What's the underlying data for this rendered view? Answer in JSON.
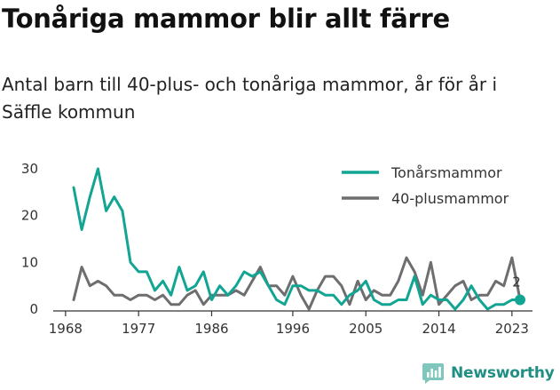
{
  "title": "Tonåriga mammor blir allt färre",
  "subtitle": "Antal barn till 40-plus- och tonåriga mammor, år för år i Säffle kommun",
  "brand": {
    "name": "Newsworthy",
    "icon": "newsworthy-logo-icon"
  },
  "colors": {
    "teen": "#12a593",
    "plus40": "#6e6e70",
    "axis": "#333333",
    "grid": "#d9d9d9"
  },
  "chart_data": {
    "type": "line",
    "xlabel": "",
    "ylabel": "",
    "xlim": [
      1968,
      2024
    ],
    "ylim": [
      0,
      30
    ],
    "x_ticks": [
      "1968",
      "1977",
      "1986",
      "1996",
      "2005",
      "2014",
      "2023"
    ],
    "y_ticks": [
      "0",
      "10",
      "20",
      "30"
    ],
    "grid": false,
    "legend_position": "top-right",
    "x": [
      1969,
      1970,
      1971,
      1972,
      1973,
      1974,
      1975,
      1976,
      1977,
      1978,
      1979,
      1980,
      1981,
      1982,
      1983,
      1984,
      1985,
      1986,
      1987,
      1988,
      1989,
      1990,
      1991,
      1992,
      1993,
      1994,
      1995,
      1996,
      1997,
      1998,
      1999,
      2000,
      2001,
      2002,
      2003,
      2004,
      2005,
      2006,
      2007,
      2008,
      2009,
      2010,
      2011,
      2012,
      2013,
      2014,
      2015,
      2016,
      2017,
      2018,
      2019,
      2020,
      2021,
      2022,
      2023,
      2024
    ],
    "series": [
      {
        "name": "Tonårsmammor",
        "color": "#12a593",
        "values": [
          26,
          17,
          24,
          30,
          21,
          24,
          21,
          10,
          8,
          8,
          4,
          6,
          3,
          9,
          4,
          5,
          8,
          2,
          5,
          3,
          5,
          8,
          7,
          8,
          5,
          2,
          1,
          5,
          5,
          4,
          4,
          3,
          3,
          1,
          3,
          4,
          6,
          2,
          1,
          1,
          2,
          2,
          7,
          1,
          3,
          2,
          2,
          0,
          2,
          5,
          2,
          0,
          1,
          1,
          2,
          2
        ]
      },
      {
        "name": "40-plusmammor",
        "color": "#6e6e70",
        "values": [
          2,
          9,
          5,
          6,
          5,
          3,
          3,
          2,
          3,
          3,
          2,
          3,
          1,
          1,
          3,
          4,
          1,
          3,
          3,
          3,
          4,
          3,
          6,
          9,
          5,
          5,
          3,
          7,
          3,
          0,
          4,
          7,
          7,
          5,
          1,
          6,
          2,
          4,
          3,
          3,
          6,
          11,
          8,
          3,
          10,
          1,
          3,
          5,
          6,
          2,
          3,
          3,
          6,
          5,
          11,
          2
        ]
      }
    ],
    "annotations": [
      {
        "x": 2024,
        "series": "Tonårsmammor",
        "text": "2"
      }
    ]
  }
}
